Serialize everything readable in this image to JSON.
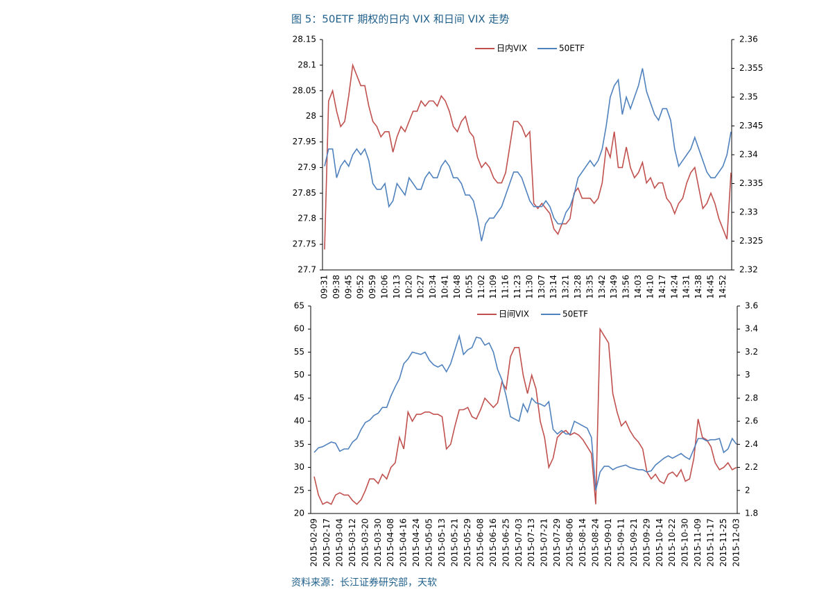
{
  "title": "图 5：50ETF 期权的日内 VIX 和日间 VIX 走势",
  "source": "资料来源：长江证券研究部，天软",
  "chart_data": [
    {
      "type": "line",
      "categories": [
        "09:31",
        null,
        null,
        "09:38",
        null,
        null,
        "09:45",
        null,
        null,
        "09:52",
        null,
        null,
        "09:59",
        null,
        null,
        "10:06",
        null,
        null,
        "10:13",
        null,
        null,
        "10:20",
        null,
        null,
        "10:27",
        null,
        null,
        "10:34",
        null,
        null,
        "10:41",
        null,
        null,
        "10:48",
        null,
        null,
        "10:55",
        null,
        null,
        "11:02",
        null,
        null,
        "11:09",
        null,
        null,
        "11:16",
        null,
        null,
        "11:23",
        null,
        null,
        "11:30",
        null,
        null,
        "13:07",
        null,
        null,
        "13:14",
        null,
        null,
        "13:21",
        null,
        null,
        "13:28",
        null,
        null,
        "13:35",
        null,
        null,
        "13:42",
        null,
        null,
        "13:49",
        null,
        null,
        "13:56",
        null,
        null,
        "14:03",
        null,
        null,
        "14:10",
        null,
        null,
        "14:17",
        null,
        null,
        "14:24",
        null,
        null,
        "14:31",
        null,
        null,
        "14:38",
        null,
        null,
        "14:45",
        null,
        null,
        "14:52",
        null,
        null
      ],
      "series": [
        {
          "name": "日内VIX",
          "color": "#c0504d",
          "axis": "y",
          "values": [
            27.74,
            28.03,
            28.05,
            28.01,
            27.98,
            27.99,
            28.04,
            28.1,
            28.08,
            28.06,
            28.06,
            28.02,
            27.99,
            27.98,
            27.96,
            27.97,
            27.97,
            27.93,
            27.96,
            27.98,
            27.97,
            27.99,
            28.01,
            28.01,
            28.03,
            28.02,
            28.03,
            28.03,
            28.02,
            28.04,
            28.03,
            28.01,
            27.98,
            27.97,
            27.99,
            28.0,
            27.97,
            27.96,
            27.92,
            27.9,
            27.91,
            27.9,
            27.88,
            27.87,
            27.87,
            27.89,
            27.94,
            27.99,
            27.99,
            27.98,
            27.96,
            27.97,
            27.83,
            27.82,
            27.83,
            27.82,
            27.81,
            27.78,
            27.77,
            27.79,
            27.79,
            27.8,
            27.85,
            27.86,
            27.84,
            27.84,
            27.84,
            27.83,
            27.84,
            27.87,
            27.94,
            27.92,
            27.97,
            27.9,
            27.9,
            27.94,
            27.9,
            27.88,
            27.89,
            27.91,
            27.87,
            27.88,
            27.86,
            27.87,
            27.87,
            27.84,
            27.83,
            27.81,
            27.83,
            27.84,
            27.87,
            27.89,
            27.9,
            27.86,
            27.82,
            27.83,
            27.85,
            27.83,
            27.8,
            27.78,
            27.76,
            27.89
          ]
        },
        {
          "name": "50ETF",
          "color": "#4f81bd",
          "axis": "y2",
          "values": [
            2.338,
            2.341,
            2.341,
            2.336,
            2.338,
            2.339,
            2.338,
            2.34,
            2.341,
            2.34,
            2.341,
            2.339,
            2.335,
            2.334,
            2.334,
            2.335,
            2.331,
            2.332,
            2.335,
            2.334,
            2.333,
            2.336,
            2.335,
            2.334,
            2.334,
            2.336,
            2.337,
            2.336,
            2.336,
            2.338,
            2.339,
            2.338,
            2.336,
            2.336,
            2.335,
            2.333,
            2.333,
            2.332,
            2.329,
            2.325,
            2.328,
            2.329,
            2.329,
            2.33,
            2.331,
            2.333,
            2.335,
            2.337,
            2.337,
            2.336,
            2.334,
            2.332,
            2.331,
            2.331,
            2.331,
            2.332,
            2.331,
            2.329,
            2.328,
            2.328,
            2.33,
            2.331,
            2.333,
            2.336,
            2.337,
            2.338,
            2.339,
            2.338,
            2.339,
            2.341,
            2.345,
            2.35,
            2.352,
            2.353,
            2.347,
            2.35,
            2.348,
            2.35,
            2.352,
            2.355,
            2.351,
            2.349,
            2.347,
            2.346,
            2.348,
            2.348,
            2.346,
            2.341,
            2.338,
            2.339,
            2.34,
            2.341,
            2.343,
            2.341,
            2.339,
            2.337,
            2.336,
            2.336,
            2.337,
            2.338,
            2.34,
            2.344
          ]
        }
      ],
      "ylim": [
        27.7,
        28.15
      ],
      "yticks": [
        27.7,
        27.75,
        27.8,
        27.85,
        27.9,
        27.95,
        28,
        28.05,
        28.1,
        28.15
      ],
      "y2lim": [
        2.32,
        2.36
      ],
      "y2ticks": [
        2.32,
        2.325,
        2.33,
        2.335,
        2.34,
        2.345,
        2.35,
        2.355,
        2.36
      ],
      "grid": false,
      "legend": "top"
    },
    {
      "type": "line",
      "categories": [
        "2015-02-09",
        null,
        null,
        "2015-02-17",
        null,
        null,
        "2015-03-04",
        null,
        null,
        "2015-03-12",
        null,
        null,
        "2015-03-20",
        null,
        null,
        "2015-03-30",
        null,
        null,
        "2015-04-08",
        null,
        null,
        "2015-04-16",
        null,
        null,
        "2015-04-24",
        null,
        null,
        "2015-05-05",
        null,
        null,
        "2015-05-13",
        null,
        null,
        "2015-05-21",
        null,
        null,
        "2015-05-29",
        null,
        null,
        "2015-06-08",
        null,
        null,
        "2015-06-16",
        null,
        null,
        "2015-06-25",
        null,
        null,
        "2015-07-03",
        null,
        null,
        "2015-07-13",
        null,
        null,
        "2015-07-21",
        null,
        null,
        "2015-07-29",
        null,
        null,
        "2015-08-06",
        null,
        null,
        "2015-08-14",
        null,
        null,
        "2015-08-24",
        null,
        null,
        "2015-09-01",
        null,
        null,
        "2015-09-11",
        null,
        null,
        "2015-09-21",
        null,
        null,
        "2015-09-29",
        null,
        null,
        "2015-10-14",
        null,
        null,
        "2015-10-22",
        null,
        null,
        "2015-10-30",
        null,
        null,
        "2015-11-09",
        null,
        null,
        "2015-11-17",
        null,
        null,
        "2015-11-25",
        null,
        null,
        "2015-12-03"
      ],
      "series": [
        {
          "name": "日间VIX",
          "color": "#c0504d",
          "axis": "y",
          "values": [
            28,
            24,
            22,
            22.5,
            22,
            24,
            24.5,
            24,
            24,
            22.8,
            22,
            23,
            25,
            27.5,
            27.5,
            26.5,
            28.5,
            27.5,
            30,
            31,
            36.5,
            34,
            42,
            40,
            41.5,
            41.5,
            42,
            42,
            41.5,
            41.5,
            41,
            34,
            35,
            39,
            42.5,
            42.5,
            43,
            41,
            40.5,
            42.5,
            45,
            44,
            43,
            44,
            48.5,
            47,
            54,
            56,
            56,
            50,
            46,
            50,
            47,
            40,
            36.5,
            30,
            32,
            36.5,
            37.5,
            38,
            37,
            37.5,
            37,
            36,
            34.5,
            33,
            22,
            60,
            58.5,
            57,
            46,
            42,
            39,
            40,
            38,
            36.5,
            35.5,
            34,
            29,
            27.5,
            28.5,
            27,
            26.5,
            28.5,
            29,
            28,
            29.5,
            27,
            27.5,
            32,
            40.5,
            36.5,
            36,
            34.5,
            31,
            29.5,
            30,
            31,
            29.5,
            30
          ]
        },
        {
          "name": "50ETF",
          "color": "#4f81bd",
          "axis": "y2",
          "values": [
            2.33,
            2.37,
            2.38,
            2.4,
            2.42,
            2.41,
            2.34,
            2.36,
            2.36,
            2.42,
            2.45,
            2.53,
            2.59,
            2.61,
            2.65,
            2.67,
            2.72,
            2.72,
            2.82,
            2.9,
            2.97,
            3.1,
            3.14,
            3.2,
            3.19,
            3.18,
            3.2,
            3.13,
            3.09,
            3.07,
            3.09,
            3.03,
            3.1,
            3.22,
            3.34,
            3.18,
            3.22,
            3.24,
            3.33,
            3.32,
            3.26,
            3.28,
            3.2,
            3.05,
            2.96,
            2.82,
            2.64,
            2.62,
            2.6,
            2.75,
            2.68,
            2.8,
            2.76,
            2.75,
            2.73,
            2.77,
            2.53,
            2.49,
            2.52,
            2.49,
            2.49,
            2.6,
            2.58,
            2.56,
            2.54,
            2.46,
            2,
            2.16,
            2.21,
            2.21,
            2.18,
            2.2,
            2.21,
            2.22,
            2.2,
            2.19,
            2.18,
            2.18,
            2.16,
            2.17,
            2.22,
            2.25,
            2.28,
            2.3,
            2.28,
            2.3,
            2.32,
            2.29,
            2.27,
            2.36,
            2.45,
            2.45,
            2.43,
            2.44,
            2.44,
            2.45,
            2.33,
            2.36,
            2.45,
            2.4
          ]
        }
      ],
      "ylim": [
        20,
        65
      ],
      "yticks": [
        20,
        25,
        30,
        35,
        40,
        45,
        50,
        55,
        60,
        65
      ],
      "y2lim": [
        1.8,
        3.6
      ],
      "y2ticks": [
        1.8,
        2,
        2.2,
        2.4,
        2.6,
        2.8,
        3,
        3.2,
        3.4,
        3.6
      ],
      "grid": false,
      "legend": "top"
    }
  ]
}
